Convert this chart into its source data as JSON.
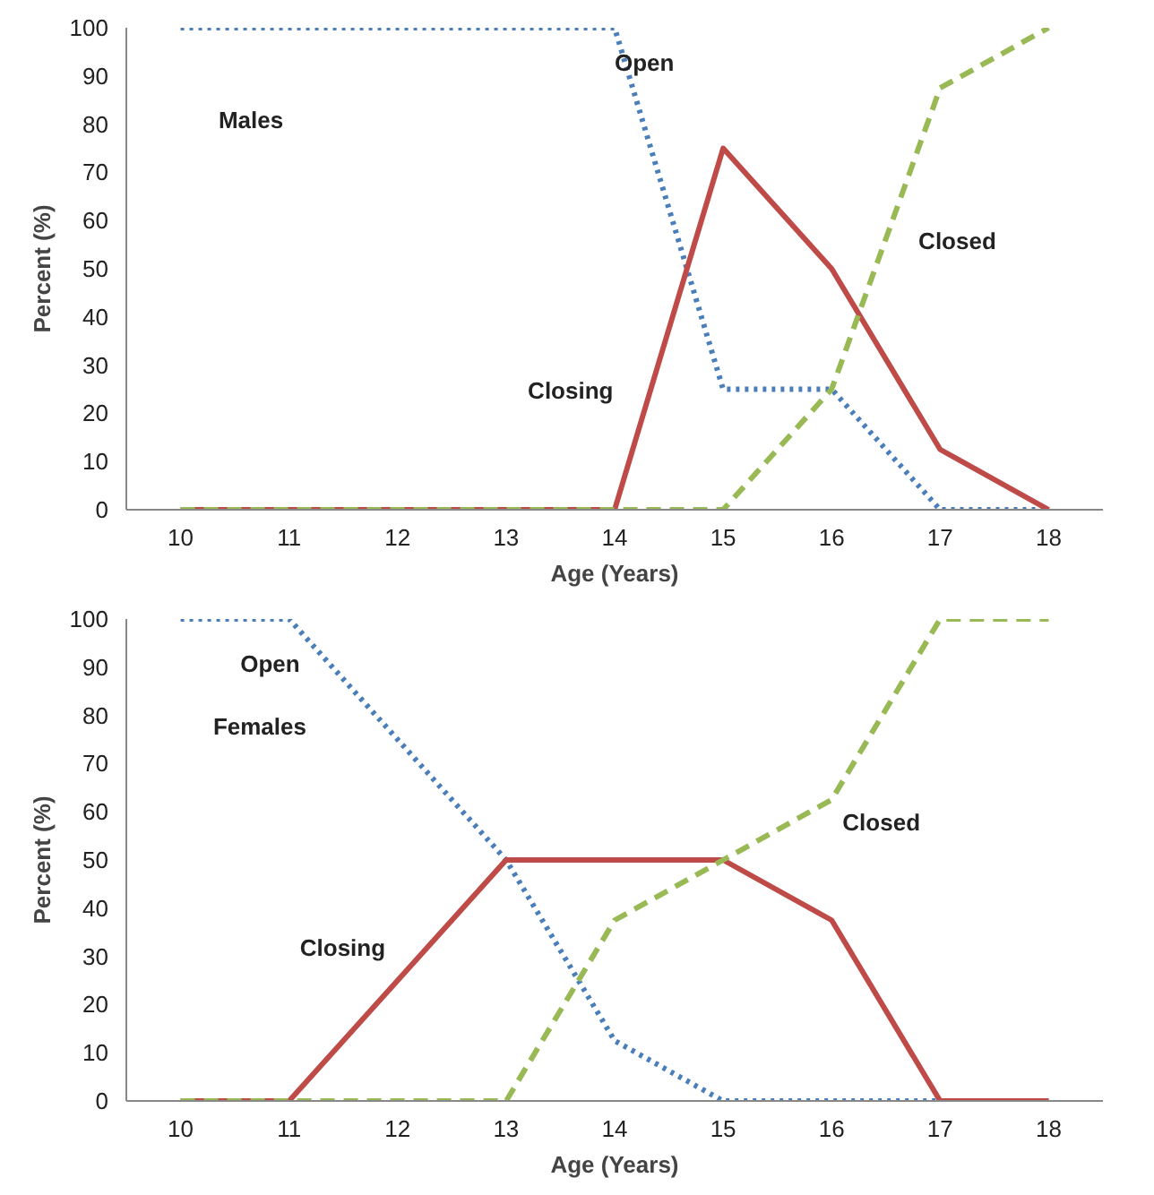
{
  "chart_data": [
    {
      "type": "line",
      "xlabel": "Age (Years)",
      "ylabel": "Percent (%)",
      "categories": [
        "10",
        "11",
        "12",
        "13",
        "14",
        "15",
        "16",
        "17",
        "18"
      ],
      "ylim": [
        0,
        100
      ],
      "yticks": [
        0,
        10,
        20,
        30,
        40,
        50,
        60,
        70,
        80,
        90,
        100
      ],
      "grid": false,
      "legend": false,
      "marker": "none",
      "annotations": [
        "Males"
      ],
      "series": [
        {
          "name": "Open",
          "color": "#4a7ebb",
          "line_style": "dotted",
          "values": [
            100,
            100,
            100,
            100,
            100,
            25,
            25,
            0,
            0
          ]
        },
        {
          "name": "Closing",
          "color": "#be4b48",
          "line_style": "solid",
          "values": [
            0,
            0,
            0,
            0,
            0,
            75,
            50,
            12.5,
            0
          ]
        },
        {
          "name": "Closed",
          "color": "#98b954",
          "line_style": "dashed",
          "values": [
            0,
            0,
            0,
            0,
            0,
            0,
            25,
            87.5,
            100
          ]
        }
      ]
    },
    {
      "type": "line",
      "xlabel": "Age (Years)",
      "ylabel": "Percent (%)",
      "categories": [
        "10",
        "11",
        "12",
        "13",
        "14",
        "15",
        "16",
        "17",
        "18"
      ],
      "ylim": [
        0,
        100
      ],
      "yticks": [
        0,
        10,
        20,
        30,
        40,
        50,
        60,
        70,
        80,
        90,
        100
      ],
      "grid": false,
      "legend": false,
      "marker": "none",
      "annotations": [
        "Females"
      ],
      "series": [
        {
          "name": "Open",
          "color": "#4a7ebb",
          "line_style": "dotted",
          "values": [
            100,
            100,
            75,
            50,
            12.5,
            0,
            0,
            0,
            0
          ]
        },
        {
          "name": "Closing",
          "color": "#be4b48",
          "line_style": "solid",
          "values": [
            0,
            0,
            25,
            50,
            50,
            50,
            37.5,
            0,
            0
          ]
        },
        {
          "name": "Closed",
          "color": "#98b954",
          "line_style": "dashed",
          "values": [
            0,
            0,
            0,
            0,
            37.5,
            50,
            62.5,
            100,
            100
          ]
        }
      ]
    }
  ]
}
